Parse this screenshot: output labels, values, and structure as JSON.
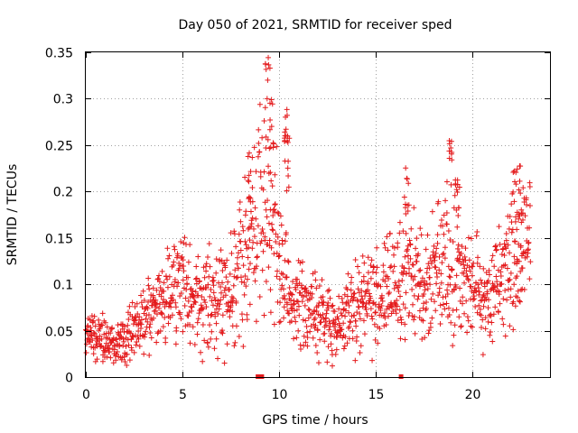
{
  "chart_data": {
    "type": "scatter",
    "title": "Day 050 of 2021, SRMTID for receiver sped",
    "xlabel": "GPS time / hours",
    "ylabel": "SRMTID / TECUs",
    "xlim": [
      0,
      24
    ],
    "ylim": [
      0,
      0.35
    ],
    "xticks": [
      0,
      5,
      10,
      15,
      20
    ],
    "xtick_labels": [
      "0",
      "5",
      "10",
      "15",
      "20"
    ],
    "yticks": [
      0,
      0.05,
      0.1,
      0.15,
      0.2,
      0.25,
      0.3,
      0.35
    ],
    "ytick_labels": [
      "0",
      "0.05",
      "0.1",
      "0.15",
      "0.2",
      "0.25",
      "0.3",
      "0.35"
    ],
    "grid": true,
    "marker": "+",
    "series_color": "#e41a1c",
    "series": [
      {
        "name": "SRMTID",
        "trend_hours": [
          0,
          0.5,
          1,
          1.5,
          2,
          2.5,
          3,
          3.5,
          4,
          4.5,
          5,
          5.5,
          6,
          6.5,
          7,
          7.5,
          8,
          8.5,
          9,
          9.5,
          10,
          10.5,
          11,
          11.5,
          12,
          12.5,
          13,
          13.5,
          14,
          14.5,
          15,
          15.5,
          16,
          16.5,
          17,
          17.5,
          18,
          18.5,
          19,
          19.5,
          20,
          20.5,
          21,
          21.5,
          22,
          22.5,
          23
        ],
        "trend_values": [
          0.045,
          0.05,
          0.038,
          0.035,
          0.042,
          0.05,
          0.06,
          0.07,
          0.085,
          0.095,
          0.1,
          0.085,
          0.08,
          0.082,
          0.09,
          0.1,
          0.12,
          0.15,
          0.18,
          0.19,
          0.12,
          0.085,
          0.08,
          0.075,
          0.065,
          0.06,
          0.055,
          0.065,
          0.08,
          0.09,
          0.085,
          0.09,
          0.1,
          0.11,
          0.105,
          0.1,
          0.11,
          0.13,
          0.13,
          0.11,
          0.1,
          0.09,
          0.085,
          0.11,
          0.12,
          0.13,
          0.14
        ],
        "peaks": [
          [
            8.5,
            0.245
          ],
          [
            9.4,
            0.345
          ],
          [
            9.6,
            0.3
          ],
          [
            10.4,
            0.29
          ],
          [
            10.4,
            0.26
          ],
          [
            16.6,
            0.235
          ],
          [
            18.8,
            0.255
          ],
          [
            19.2,
            0.23
          ],
          [
            22.5,
            0.235
          ],
          [
            22.2,
            0.225
          ]
        ],
        "near_zero_hours": [
          8.9,
          9.1,
          16.3
        ]
      }
    ]
  }
}
